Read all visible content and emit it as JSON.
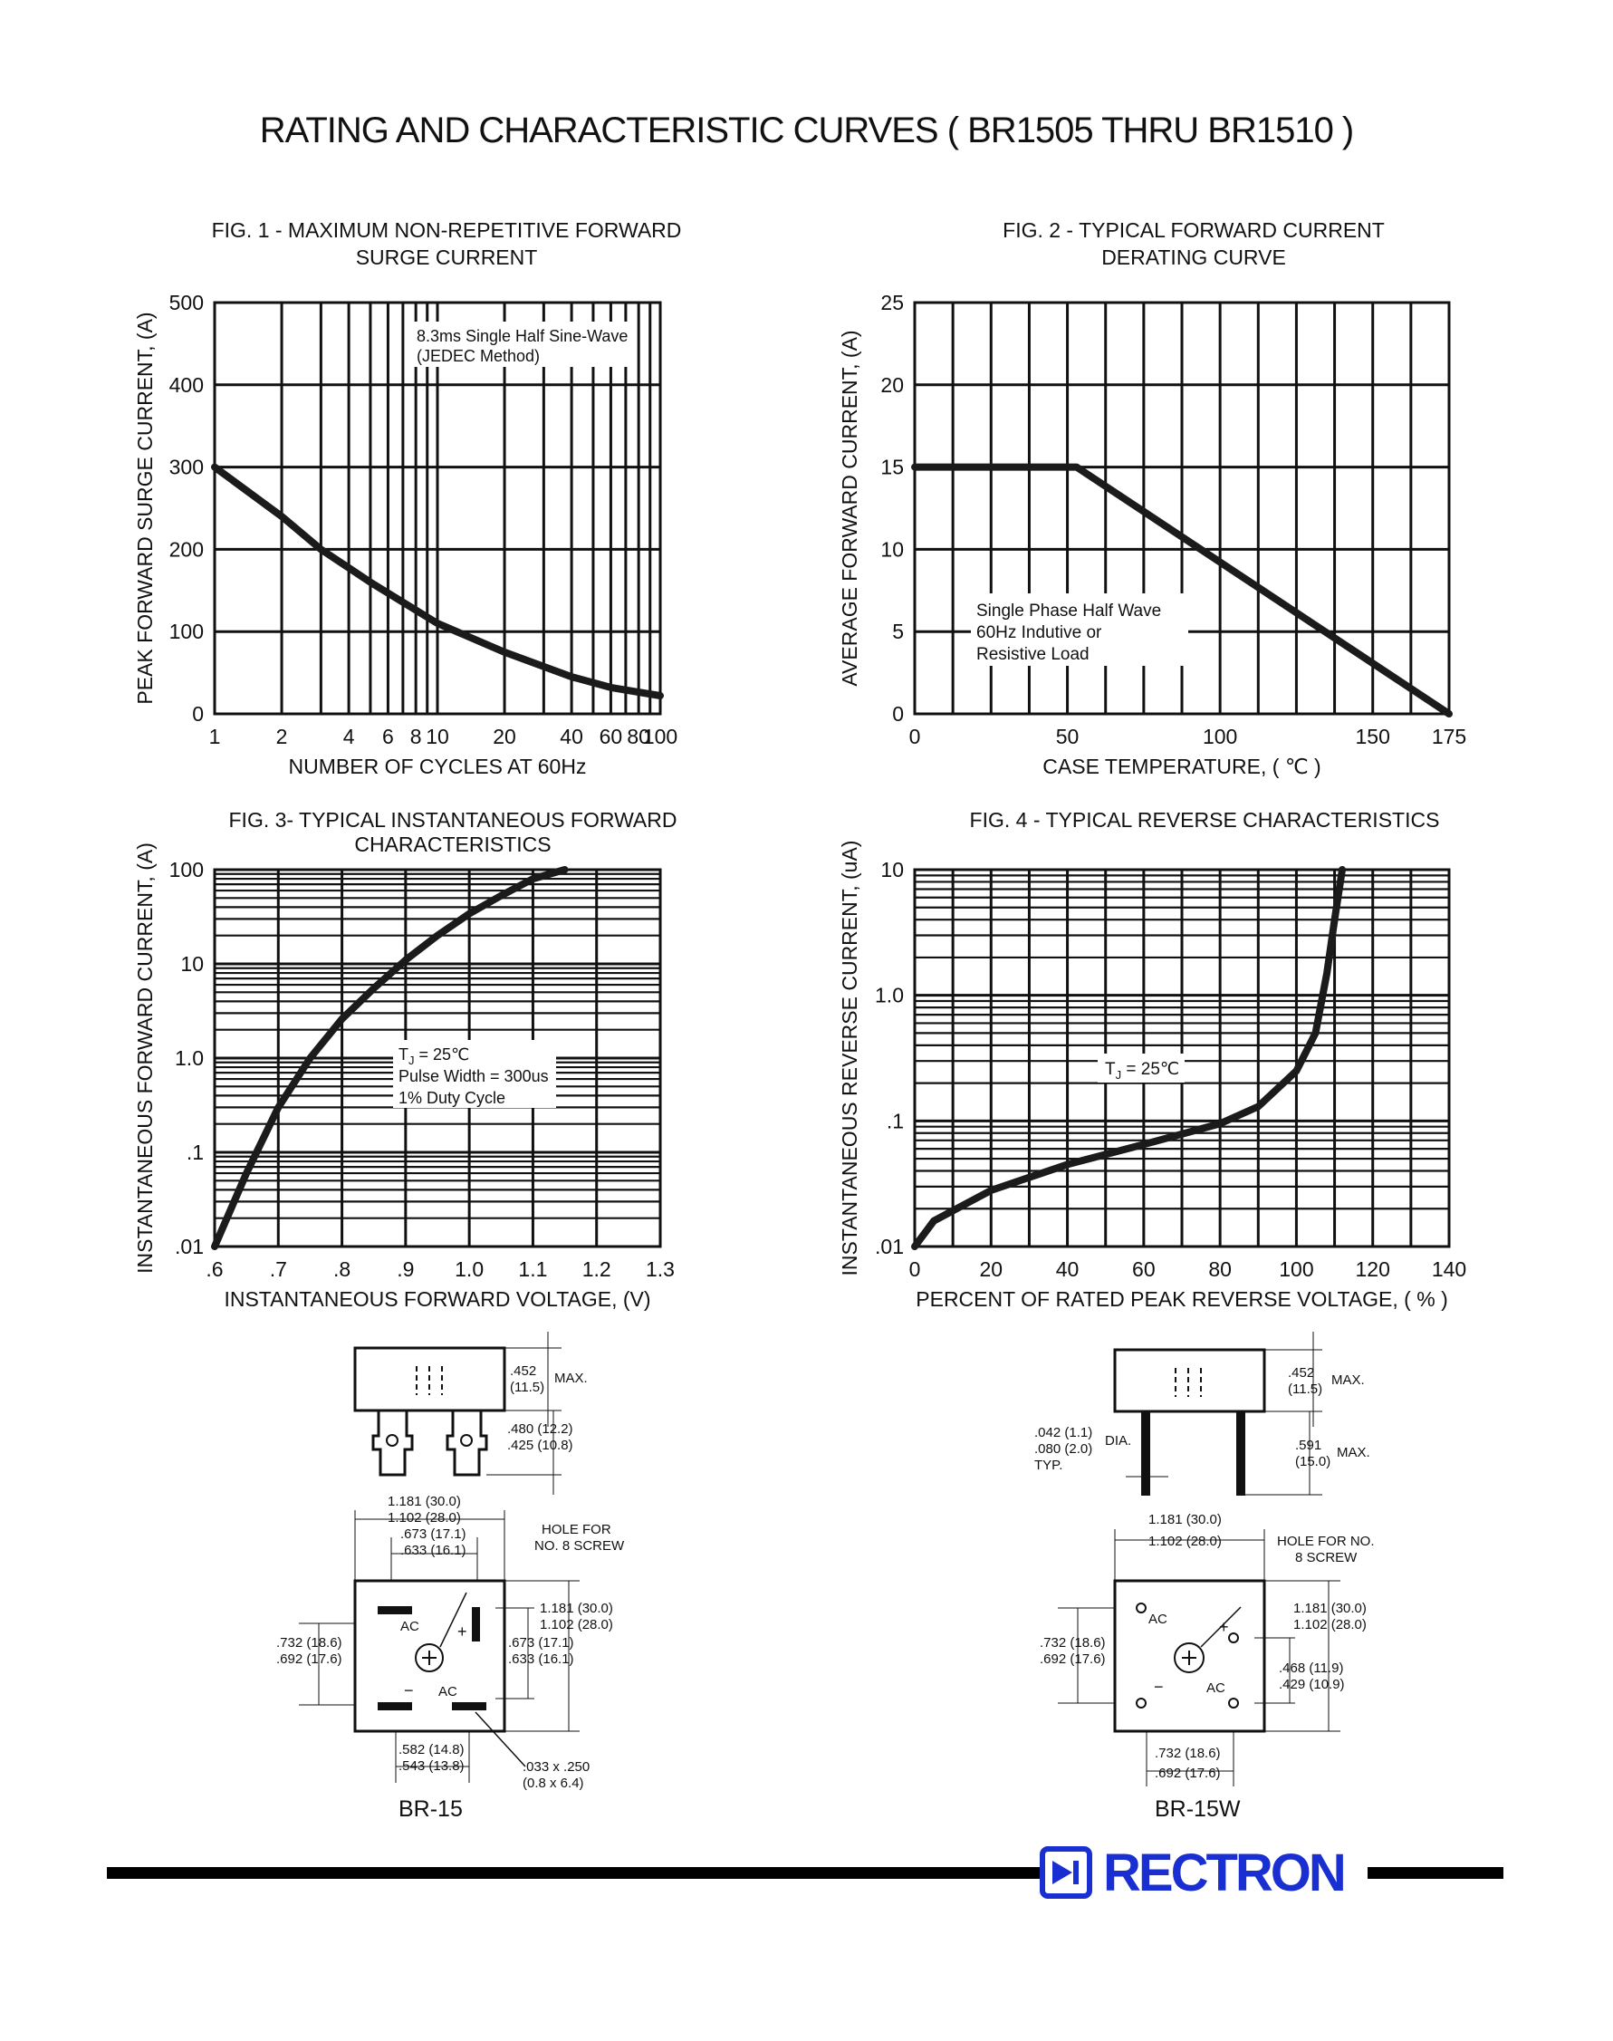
{
  "page": {
    "title": "RATING AND CHARACTERISTIC CURVES ( BR1505 THRU BR1510 )"
  },
  "chart_data": [
    {
      "type": "line",
      "title_line1": "FIG. 1 - MAXIMUM NON-REPETITIVE FORWARD",
      "title_line2": "SURGE CURRENT",
      "xlabel": "NUMBER OF CYCLES AT 60Hz",
      "ylabel": "PEAK FORWARD SURGE CURRENT, (A)",
      "xscale": "log",
      "xlim": [
        1,
        100
      ],
      "ylim": [
        0,
        500
      ],
      "grid": true,
      "x_ticks": [
        "1",
        "2",
        "4",
        "6",
        "8",
        "10",
        "20",
        "40",
        "60",
        "80",
        "100"
      ],
      "y_ticks": [
        "0",
        "100",
        "200",
        "300",
        "400",
        "500"
      ],
      "annotation_line1": "8.3ms Single Half Sine-Wave",
      "annotation_line2": "(JEDEC Method)",
      "series": [
        {
          "x": [
            1,
            2,
            3,
            5,
            10,
            20,
            40,
            60,
            100
          ],
          "y": [
            300,
            240,
            200,
            160,
            110,
            75,
            45,
            32,
            22
          ]
        }
      ]
    },
    {
      "type": "line",
      "title_line1": "FIG. 2 - TYPICAL FORWARD CURRENT",
      "title_line2": "DERATING CURVE",
      "xlabel": "CASE TEMPERATURE, ( ℃ )",
      "ylabel": "AVERAGE FORWARD  CURRENT, (A)",
      "xlim": [
        0,
        175
      ],
      "ylim": [
        0,
        25
      ],
      "grid": true,
      "x_ticks": [
        "0",
        "50",
        "100",
        "150",
        "175"
      ],
      "y_ticks": [
        "0",
        "5",
        "10",
        "15",
        "20",
        "25"
      ],
      "annotation_line1": "Single Phase Half Wave",
      "annotation_line2": "60Hz Indutive or",
      "annotation_line3": "Resistive Load",
      "series": [
        {
          "x": [
            0,
            53,
            175
          ],
          "y": [
            15,
            15,
            0
          ]
        }
      ]
    },
    {
      "type": "line",
      "title_line1": "FIG. 3- TYPICAL INSTANTANEOUS FORWARD",
      "title_line2": "CHARACTERISTICS",
      "xlabel": "INSTANTANEOUS FORWARD VOLTAGE, (V)",
      "ylabel": "INSTANTANEOUS FORWARD CURRENT, (A)",
      "yscale": "log",
      "xlim": [
        0.6,
        1.3
      ],
      "ylim": [
        0.01,
        100
      ],
      "grid": true,
      "x_ticks": [
        ".6",
        ".7",
        ".8",
        ".9",
        "1.0",
        "1.1",
        "1.2",
        "1.3"
      ],
      "y_ticks": [
        ".01",
        ".1",
        "1.0",
        "10",
        "100"
      ],
      "annotation_line1": "T",
      "annotation_sub": "J",
      "annotation_line1b": " = 25℃",
      "annotation_line2": "Pulse Width = 300us",
      "annotation_line3": "1% Duty Cycle",
      "series": [
        {
          "x": [
            0.6,
            0.65,
            0.7,
            0.75,
            0.8,
            0.85,
            0.9,
            0.95,
            1.0,
            1.05,
            1.1,
            1.15
          ],
          "y": [
            0.01,
            0.06,
            0.3,
            1.0,
            2.6,
            5.5,
            11,
            20,
            34,
            53,
            80,
            100
          ]
        }
      ]
    },
    {
      "type": "line",
      "title_line1": "FIG. 4 - TYPICAL REVERSE CHARACTERISTICS",
      "title_line2": "",
      "xlabel": "PERCENT OF RATED PEAK REVERSE VOLTAGE, ( % )",
      "ylabel": "INSTANTANEOUS REVERSE CURRENT, (uA)",
      "yscale": "log",
      "xlim": [
        0,
        140
      ],
      "ylim": [
        0.01,
        10
      ],
      "grid": true,
      "x_ticks": [
        "0",
        "20",
        "40",
        "60",
        "80",
        "100",
        "120",
        "140"
      ],
      "y_ticks": [
        ".01",
        ".1",
        "1.0",
        "10"
      ],
      "annotation_line1": "T",
      "annotation_sub": "J",
      "annotation_line1b": " = 25℃",
      "series": [
        {
          "x": [
            0,
            5,
            20,
            40,
            60,
            80,
            90,
            100,
            105,
            108,
            110,
            112
          ],
          "y": [
            0.01,
            0.016,
            0.028,
            0.045,
            0.065,
            0.095,
            0.13,
            0.25,
            0.5,
            1.5,
            4,
            10
          ]
        }
      ]
    }
  ],
  "packages": {
    "br15": {
      "label": "BR-15",
      "dim_452": ".452",
      "dim_452_mm": "(11.5)",
      "max": "MAX.",
      "dim_480": ".480 (12.2)",
      "dim_425": ".425 (10.8)",
      "dim_1181": "1.181 (30.0)",
      "dim_1102": "1.102 (28.0)",
      "dim_673": ".673 (17.1)",
      "dim_633": ".633 (16.1)",
      "hole_line1": "HOLE FOR",
      "hole_line2": "NO. 8 SCREW",
      "dim_1181_r": "1.181 (30.0)",
      "dim_1102_r": "1.102 (28.0)",
      "dim_673_r": ".673 (17.1)",
      "dim_633_r": ".633 (16.1)",
      "dim_732": ".732 (18.6)",
      "dim_692": ".692 (17.6)",
      "dim_582": ".582 (14.8)",
      "dim_543": ".543 (13.8)",
      "dim_033": ".033 x .250",
      "dim_08": "(0.8 x 6.4)",
      "ac1": "AC",
      "ac2": "AC",
      "minus": "−",
      "plus": "+"
    },
    "br15w": {
      "label": "BR-15W",
      "dim_452": ".452",
      "dim_452_mm": "(11.5)",
      "max": "MAX.",
      "dim_042": ".042 (1.1)",
      "dim_080": ".080 (2.0)",
      "dia": "DIA.",
      "typ": "TYP.",
      "dim_591": ".591",
      "dim_591_mm": "(15.0)",
      "max2": "MAX.",
      "dim_1181": "1.181 (30.0)",
      "dim_1102": "1.102 (28.0)",
      "hole_line1": "HOLE FOR NO.",
      "hole_line2": "8 SCREW",
      "dim_1181_r": "1.181 (30.0)",
      "dim_1102_r": "1.102 (28.0)",
      "dim_468": ".468 (11.9)",
      "dim_429": ".429 (10.9)",
      "dim_732": ".732 (18.6)",
      "dim_692": ".692 (17.6)",
      "dim_732b": ".732 (18.6)",
      "dim_692b": ".692 (17.6)",
      "ac1": "AC",
      "ac2": "AC",
      "minus": "−",
      "plus": "+"
    }
  },
  "brand": {
    "name": "RECTRON",
    "accent": "#1a2fd1"
  }
}
